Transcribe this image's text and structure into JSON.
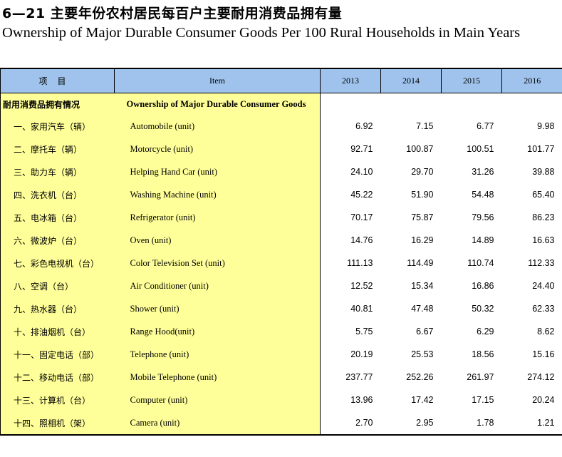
{
  "title_cn": "6—21  主要年份农村居民每百户主要耐用消费品拥有量",
  "title_en": "Ownership of Major Durable Consumer Goods Per 100 Rural Households  in Main Years",
  "header": {
    "cn": "项目",
    "en": "Item",
    "years": [
      "2013",
      "2014",
      "2015",
      "2016"
    ]
  },
  "section": {
    "cn": "耐用消费品拥有情况",
    "en": "Ownership of Major Durable Consumer Goods"
  },
  "rows": [
    {
      "cn": "一、家用汽车（辆）",
      "en": "Automobile (unit)",
      "values": [
        "6.92",
        "7.15",
        "6.77",
        "9.98"
      ]
    },
    {
      "cn": "二、摩托车（辆）",
      "en": "Motorcycle (unit)",
      "values": [
        "92.71",
        "100.87",
        "100.51",
        "101.77"
      ]
    },
    {
      "cn": "三、助力车（辆）",
      "en": "Helping Hand Car (unit)",
      "values": [
        "24.10",
        "29.70",
        "31.26",
        "39.88"
      ]
    },
    {
      "cn": "四、洗衣机（台）",
      "en": "Washing Machine (unit)",
      "values": [
        "45.22",
        "51.90",
        "54.48",
        "65.40"
      ]
    },
    {
      "cn": "五、电冰箱（台）",
      "en": "Refrigerator (unit)",
      "values": [
        "70.17",
        "75.87",
        "79.56",
        "86.23"
      ]
    },
    {
      "cn": "六、微波炉（台）",
      "en": "Oven (unit)",
      "values": [
        "14.76",
        "16.29",
        "14.89",
        "16.63"
      ]
    },
    {
      "cn": "七、彩色电视机（台）",
      "en": "Color Television Set (unit)",
      "values": [
        "111.13",
        "114.49",
        "110.74",
        "112.33"
      ]
    },
    {
      "cn": "八、空调（台）",
      "en": "Air Conditioner (unit)",
      "values": [
        "12.52",
        "15.34",
        "16.86",
        "24.40"
      ]
    },
    {
      "cn": "九、热水器（台）",
      "en": "Shower (unit)",
      "values": [
        "40.81",
        "47.48",
        "50.32",
        "62.33"
      ]
    },
    {
      "cn": "十、排油烟机（台）",
      "en": "Range Hood(unit)",
      "values": [
        "5.75",
        "6.67",
        "6.29",
        "8.62"
      ]
    },
    {
      "cn": "十一、固定电话（部）",
      "en": "Telephone (unit)",
      "values": [
        "20.19",
        "25.53",
        "18.56",
        "15.16"
      ]
    },
    {
      "cn": "十二、移动电话（部）",
      "en": "Mobile Telephone (unit)",
      "values": [
        "237.77",
        "252.26",
        "261.97",
        "274.12"
      ]
    },
    {
      "cn": "十三、计算机（台）",
      "en": "Computer (unit)",
      "values": [
        "13.96",
        "17.42",
        "17.15",
        "20.24"
      ]
    },
    {
      "cn": "十四、照相机（架）",
      "en": "Camera (unit)",
      "values": [
        "2.70",
        "2.95",
        "1.78",
        "1.21"
      ]
    }
  ],
  "colors": {
    "header_bg": "#9fc3ec",
    "item_bg": "#ffff99"
  }
}
